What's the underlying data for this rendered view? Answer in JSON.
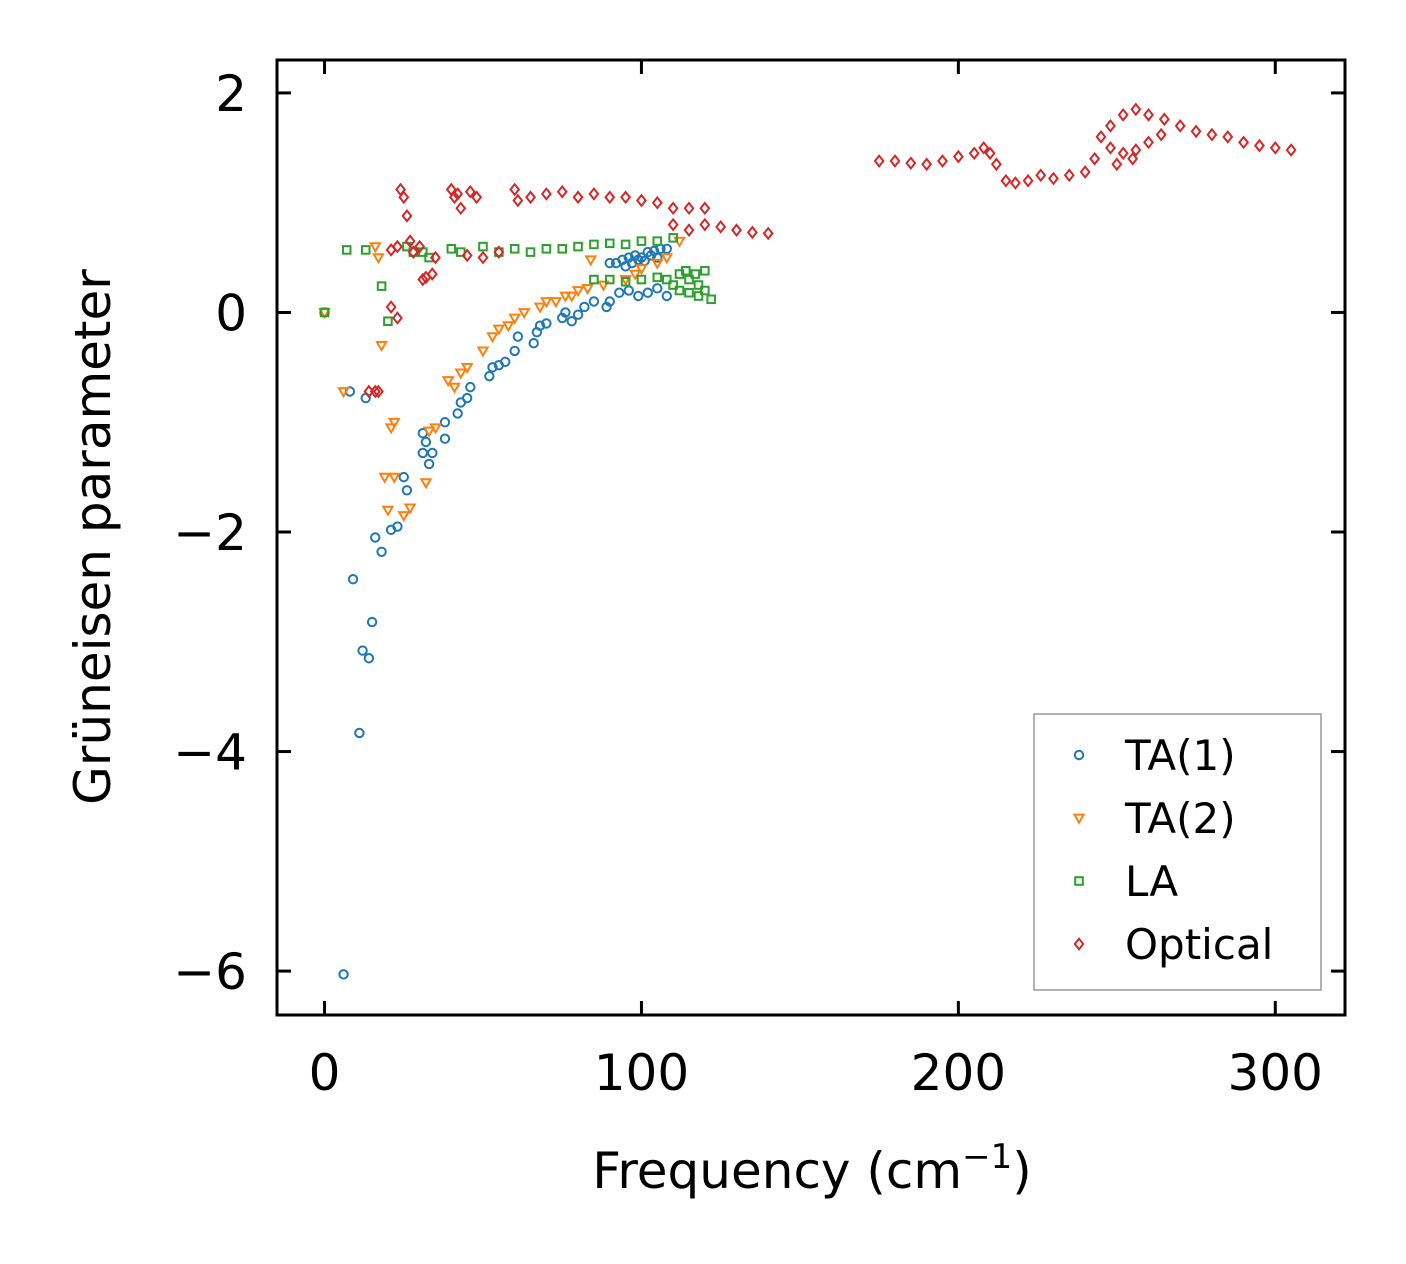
{
  "chart_data": {
    "type": "scatter",
    "title": "",
    "xlabel": "Frequency (cm",
    "xlabel_sup": "−1",
    "xlabel_end": ")",
    "ylabel": "Grüneisen parameter",
    "xlim": [
      -15,
      322
    ],
    "ylim": [
      -6.4,
      2.3
    ],
    "xticks": [
      0,
      100,
      200,
      300
    ],
    "xtick_labels": [
      "0",
      "100",
      "200",
      "300"
    ],
    "yticks": [
      2,
      0,
      -2,
      -4,
      -6
    ],
    "ytick_labels": [
      "2",
      "0",
      "−2",
      "−4",
      "−6"
    ],
    "grid": false,
    "legend_position": "lower-right",
    "series": [
      {
        "name": "TA(1)",
        "marker": "circle",
        "color": "#1f77b4",
        "points": [
          [
            0,
            0
          ],
          [
            6,
            -6.03
          ],
          [
            8,
            -0.72
          ],
          [
            9,
            -2.43
          ],
          [
            11,
            -3.83
          ],
          [
            12,
            -3.08
          ],
          [
            13,
            -0.78
          ],
          [
            14,
            -3.15
          ],
          [
            15,
            -2.82
          ],
          [
            16,
            -2.05
          ],
          [
            18,
            -2.18
          ],
          [
            21,
            -1.98
          ],
          [
            23,
            -1.95
          ],
          [
            25,
            -1.5
          ],
          [
            26,
            -1.62
          ],
          [
            31,
            -1.28
          ],
          [
            31,
            -1.1
          ],
          [
            32,
            -1.18
          ],
          [
            33,
            -1.38
          ],
          [
            34,
            -1.28
          ],
          [
            38,
            -1.15
          ],
          [
            38,
            -1.0
          ],
          [
            42,
            -0.92
          ],
          [
            43,
            -0.82
          ],
          [
            45,
            -0.78
          ],
          [
            46,
            -0.68
          ],
          [
            52,
            -0.58
          ],
          [
            53,
            -0.5
          ],
          [
            55,
            -0.48
          ],
          [
            57,
            -0.45
          ],
          [
            60,
            -0.35
          ],
          [
            61,
            -0.22
          ],
          [
            66,
            -0.28
          ],
          [
            67,
            -0.18
          ],
          [
            68,
            -0.12
          ],
          [
            70,
            -0.1
          ],
          [
            75,
            -0.05
          ],
          [
            76,
            0.0
          ],
          [
            78,
            -0.08
          ],
          [
            80,
            -0.02
          ],
          [
            82,
            0.05
          ],
          [
            85,
            0.1
          ],
          [
            89,
            0.05
          ],
          [
            90,
            0.1
          ],
          [
            93,
            0.18
          ],
          [
            96,
            0.2
          ],
          [
            99,
            0.15
          ],
          [
            102,
            0.18
          ],
          [
            105,
            0.22
          ],
          [
            108,
            0.15
          ],
          [
            90,
            0.45
          ],
          [
            92,
            0.45
          ],
          [
            94,
            0.48
          ],
          [
            96,
            0.5
          ],
          [
            98,
            0.52
          ],
          [
            100,
            0.5
          ],
          [
            102,
            0.55
          ],
          [
            104,
            0.56
          ],
          [
            106,
            0.58
          ],
          [
            108,
            0.58
          ],
          [
            95,
            0.42
          ],
          [
            97,
            0.45
          ],
          [
            99,
            0.48
          ],
          [
            101,
            0.47
          ],
          [
            103,
            0.52
          ],
          [
            105,
            0.5
          ]
        ]
      },
      {
        "name": "TA(2)",
        "marker": "triangle-down",
        "color": "#ff7f0e",
        "points": [
          [
            0,
            0
          ],
          [
            6,
            -0.72
          ],
          [
            16,
            0.6
          ],
          [
            17,
            0.5
          ],
          [
            18,
            -0.3
          ],
          [
            19,
            -1.5
          ],
          [
            20,
            -1.8
          ],
          [
            21,
            -1.05
          ],
          [
            22,
            -1.0
          ],
          [
            22,
            -1.5
          ],
          [
            25,
            -1.85
          ],
          [
            27,
            -1.78
          ],
          [
            32,
            -1.55
          ],
          [
            33,
            -1.08
          ],
          [
            35,
            -1.05
          ],
          [
            39,
            -0.62
          ],
          [
            41,
            -0.68
          ],
          [
            43,
            -0.55
          ],
          [
            45,
            -0.5
          ],
          [
            50,
            -0.35
          ],
          [
            53,
            -0.22
          ],
          [
            55,
            -0.15
          ],
          [
            58,
            -0.12
          ],
          [
            60,
            -0.05
          ],
          [
            63,
            0.0
          ],
          [
            68,
            0.05
          ],
          [
            70,
            0.1
          ],
          [
            73,
            0.1
          ],
          [
            76,
            0.15
          ],
          [
            78,
            0.15
          ],
          [
            80,
            0.2
          ],
          [
            83,
            0.22
          ],
          [
            84,
            0.48
          ],
          [
            88,
            0.25
          ],
          [
            95,
            0.3
          ],
          [
            98,
            0.35
          ],
          [
            100,
            0.4
          ],
          [
            105,
            0.45
          ],
          [
            108,
            0.5
          ],
          [
            112,
            0.65
          ]
        ]
      },
      {
        "name": "LA",
        "marker": "square",
        "color": "#2ca02c",
        "points": [
          [
            0,
            0
          ],
          [
            7,
            0.57
          ],
          [
            13,
            0.57
          ],
          [
            18,
            0.24
          ],
          [
            20,
            -0.08
          ],
          [
            26,
            0.6
          ],
          [
            28,
            0.55
          ],
          [
            31,
            0.55
          ],
          [
            33,
            0.5
          ],
          [
            40,
            0.58
          ],
          [
            43,
            0.55
          ],
          [
            50,
            0.6
          ],
          [
            55,
            0.55
          ],
          [
            60,
            0.58
          ],
          [
            65,
            0.55
          ],
          [
            70,
            0.58
          ],
          [
            75,
            0.58
          ],
          [
            80,
            0.6
          ],
          [
            85,
            0.62
          ],
          [
            90,
            0.63
          ],
          [
            95,
            0.62
          ],
          [
            100,
            0.65
          ],
          [
            105,
            0.65
          ],
          [
            110,
            0.68
          ],
          [
            85,
            0.3
          ],
          [
            90,
            0.3
          ],
          [
            95,
            0.28
          ],
          [
            100,
            0.3
          ],
          [
            105,
            0.32
          ],
          [
            108,
            0.3
          ],
          [
            112,
            0.35
          ],
          [
            115,
            0.3
          ],
          [
            118,
            0.25
          ],
          [
            120,
            0.2
          ],
          [
            112,
            0.2
          ],
          [
            115,
            0.18
          ],
          [
            118,
            0.15
          ],
          [
            122,
            0.12
          ],
          [
            110,
            0.25
          ],
          [
            114,
            0.38
          ],
          [
            117,
            0.35
          ],
          [
            120,
            0.38
          ]
        ]
      },
      {
        "name": "Optical",
        "marker": "diamond",
        "color": "#d62728",
        "points": [
          [
            14,
            -0.72
          ],
          [
            16,
            -0.72
          ],
          [
            17,
            -0.72
          ],
          [
            21,
            0.57
          ],
          [
            21,
            0.05
          ],
          [
            23,
            -0.05
          ],
          [
            23,
            0.6
          ],
          [
            24,
            1.12
          ],
          [
            25,
            1.05
          ],
          [
            26,
            0.88
          ],
          [
            27,
            0.65
          ],
          [
            28,
            0.55
          ],
          [
            30,
            0.6
          ],
          [
            31,
            0.3
          ],
          [
            32,
            0.32
          ],
          [
            34,
            0.35
          ],
          [
            35,
            0.5
          ],
          [
            40,
            1.12
          ],
          [
            41,
            1.05
          ],
          [
            42,
            1.08
          ],
          [
            43,
            0.95
          ],
          [
            45,
            0.52
          ],
          [
            46,
            1.1
          ],
          [
            48,
            1.05
          ],
          [
            50,
            0.5
          ],
          [
            55,
            0.55
          ],
          [
            60,
            1.12
          ],
          [
            61,
            1.02
          ],
          [
            65,
            1.05
          ],
          [
            70,
            1.08
          ],
          [
            75,
            1.1
          ],
          [
            80,
            1.05
          ],
          [
            85,
            1.08
          ],
          [
            90,
            1.05
          ],
          [
            95,
            1.05
          ],
          [
            100,
            1.02
          ],
          [
            105,
            1.0
          ],
          [
            110,
            0.95
          ],
          [
            115,
            0.95
          ],
          [
            120,
            0.95
          ],
          [
            110,
            0.8
          ],
          [
            115,
            0.75
          ],
          [
            120,
            0.8
          ],
          [
            125,
            0.78
          ],
          [
            130,
            0.75
          ],
          [
            135,
            0.73
          ],
          [
            140,
            0.72
          ],
          [
            175,
            1.38
          ],
          [
            180,
            1.38
          ],
          [
            185,
            1.36
          ],
          [
            190,
            1.35
          ],
          [
            195,
            1.38
          ],
          [
            200,
            1.42
          ],
          [
            205,
            1.45
          ],
          [
            208,
            1.5
          ],
          [
            210,
            1.45
          ],
          [
            212,
            1.35
          ],
          [
            215,
            1.2
          ],
          [
            218,
            1.18
          ],
          [
            222,
            1.2
          ],
          [
            226,
            1.25
          ],
          [
            230,
            1.22
          ],
          [
            235,
            1.25
          ],
          [
            240,
            1.28
          ],
          [
            243,
            1.4
          ],
          [
            245,
            1.6
          ],
          [
            248,
            1.7
          ],
          [
            252,
            1.8
          ],
          [
            256,
            1.85
          ],
          [
            260,
            1.8
          ],
          [
            265,
            1.76
          ],
          [
            270,
            1.7
          ],
          [
            275,
            1.65
          ],
          [
            280,
            1.62
          ],
          [
            285,
            1.6
          ],
          [
            290,
            1.55
          ],
          [
            295,
            1.52
          ],
          [
            300,
            1.5
          ],
          [
            305,
            1.48
          ],
          [
            248,
            1.5
          ],
          [
            252,
            1.45
          ],
          [
            256,
            1.48
          ],
          [
            260,
            1.55
          ],
          [
            264,
            1.62
          ],
          [
            250,
            1.35
          ],
          [
            255,
            1.4
          ]
        ]
      }
    ]
  }
}
